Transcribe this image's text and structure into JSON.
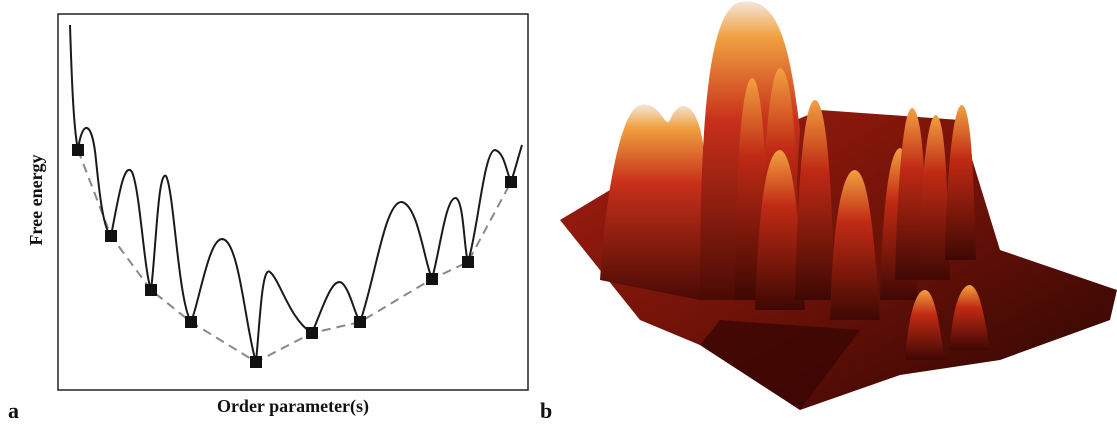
{
  "panels": [
    {
      "label": "a",
      "x_axis_label": "Order parameter(s)",
      "y_axis_label": "Free energy"
    },
    {
      "label": "b"
    }
  ]
}
